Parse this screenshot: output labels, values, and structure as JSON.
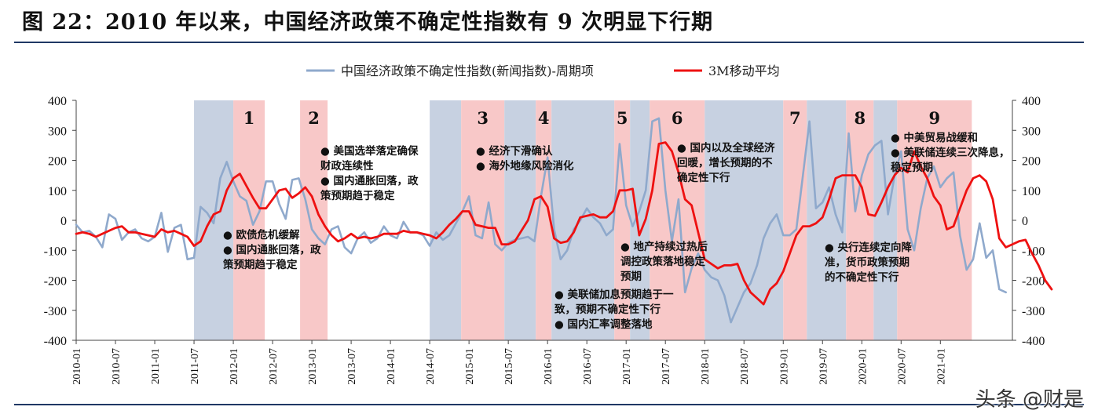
{
  "figure_title": "图 22：2010 年以来，中国经济政策不确定性指数有 9 次明显下行期",
  "watermark": "头条 @财是",
  "colors": {
    "index_line": "#8fa9cc",
    "ma_line": "#ee1111",
    "blue_band": "#c7d1e1",
    "pink_band": "#f8c8c8",
    "rule": "#1f3864"
  },
  "chart_data": {
    "type": "line",
    "title": "",
    "xlabel": "",
    "ylabel": "",
    "ylim": [
      -400,
      400
    ],
    "y_ticks": [
      -400,
      -300,
      -200,
      -100,
      0,
      100,
      200,
      300,
      400
    ],
    "x_tick_labels": [
      "2010-01",
      "2010-07",
      "2011-01",
      "2011-07",
      "2012-01",
      "2012-07",
      "2013-01",
      "2013-07",
      "2014-01",
      "2014-07",
      "2015-01",
      "2015-07",
      "2016-01",
      "2016-07",
      "2017-01",
      "2017-07",
      "2018-01",
      "2018-07",
      "2019-01",
      "2019-07",
      "2020-01",
      "2020-07",
      "2021-01"
    ],
    "legend_position": "top-center",
    "grid": false,
    "series": [
      {
        "name": "中国经济政策不确定性指数(新闻指数)-周期项",
        "values": [
          -15,
          -40,
          -35,
          -55,
          -90,
          20,
          5,
          -65,
          -40,
          -30,
          -60,
          -70,
          -55,
          25,
          -105,
          -25,
          -15,
          -130,
          -125,
          45,
          25,
          -10,
          140,
          195,
          130,
          80,
          65,
          -15,
          30,
          130,
          130,
          55,
          5,
          135,
          140,
          70,
          -30,
          -60,
          -80,
          -30,
          -20,
          -90,
          -110,
          -60,
          -40,
          -75,
          -60,
          -20,
          -50,
          -60,
          -5,
          -40,
          -40,
          -50,
          -85,
          -40,
          -65,
          -50,
          -10,
          30,
          80,
          -50,
          -60,
          60,
          -80,
          -100,
          -75,
          -65,
          -60,
          -55,
          -70,
          80,
          210,
          -30,
          -130,
          -100,
          -30,
          0,
          40,
          10,
          -10,
          -50,
          -30,
          255,
          50,
          -20,
          30,
          100,
          330,
          340,
          100,
          -70,
          70,
          -240,
          -160,
          -110,
          -165,
          -190,
          -200,
          -250,
          -340,
          -290,
          -240,
          -210,
          -150,
          -60,
          -10,
          20,
          -50,
          -50,
          -30,
          150,
          330,
          40,
          60,
          110,
          20,
          -40,
          290,
          30,
          150,
          220,
          250,
          265,
          20,
          150,
          230,
          -30,
          -100,
          40,
          140,
          180,
          110,
          140,
          160,
          -50,
          -165,
          -130,
          -10,
          -125,
          -100,
          -230,
          -240
        ],
        "color": "#8fa9cc"
      },
      {
        "name": "3M移动平均",
        "values": [
          -45,
          -40,
          -45,
          -55,
          -45,
          -35,
          -25,
          -20,
          -40,
          -40,
          -45,
          -50,
          -55,
          -30,
          -40,
          -35,
          -45,
          -55,
          -85,
          -70,
          -20,
          20,
          30,
          100,
          140,
          155,
          115,
          75,
          40,
          40,
          70,
          100,
          105,
          75,
          90,
          110,
          80,
          20,
          -20,
          -50,
          -70,
          -60,
          -45,
          -60,
          -55,
          -60,
          -55,
          -45,
          -45,
          -45,
          -35,
          -40,
          -40,
          -45,
          -50,
          -60,
          -40,
          -15,
          5,
          30,
          30,
          -15,
          -20,
          -25,
          -25,
          -80,
          -80,
          -70,
          -35,
          0,
          70,
          80,
          45,
          -60,
          -75,
          -70,
          -40,
          10,
          15,
          20,
          10,
          10,
          30,
          100,
          100,
          105,
          -50,
          5,
          100,
          255,
          260,
          230,
          160,
          70,
          50,
          -40,
          -130,
          -145,
          -160,
          -150,
          -150,
          -145,
          -200,
          -240,
          -260,
          -280,
          -230,
          -210,
          -170,
          -110,
          -50,
          -20,
          -20,
          -10,
          10,
          70,
          140,
          150,
          150,
          150,
          110,
          20,
          15,
          60,
          110,
          150,
          175,
          160,
          230,
          180,
          140,
          80,
          50,
          -30,
          -20,
          40,
          100,
          140,
          150,
          130,
          70,
          -60,
          -90,
          -80,
          -70,
          -65,
          -110,
          -150,
          -200,
          -230
        ],
        "color": "#ee1111"
      }
    ],
    "bands": [
      {
        "color": "blue",
        "start": 2011.5,
        "end": 2012.0
      },
      {
        "color": "pink",
        "start": 2012.0,
        "end": 2012.4,
        "label": "1"
      },
      {
        "color": "pink",
        "start": 2012.85,
        "end": 2013.2,
        "label": "2"
      },
      {
        "color": "blue",
        "start": 2014.5,
        "end": 2014.9
      },
      {
        "color": "pink",
        "start": 2014.9,
        "end": 2015.45,
        "label": "3"
      },
      {
        "color": "blue",
        "start": 2015.45,
        "end": 2015.85
      },
      {
        "color": "pink",
        "start": 2015.85,
        "end": 2016.05,
        "label": "4"
      },
      {
        "color": "blue",
        "start": 2016.05,
        "end": 2016.85
      },
      {
        "color": "pink",
        "start": 2016.85,
        "end": 2017.05,
        "label": "5"
      },
      {
        "color": "blue",
        "start": 2017.05,
        "end": 2017.3
      },
      {
        "color": "pink",
        "start": 2017.3,
        "end": 2018.0,
        "label": "6"
      },
      {
        "color": "blue",
        "start": 2018.0,
        "end": 2019.0
      },
      {
        "color": "pink",
        "start": 2019.0,
        "end": 2019.3,
        "label": "7"
      },
      {
        "color": "blue",
        "start": 2019.3,
        "end": 2019.8
      },
      {
        "color": "pink",
        "start": 2019.8,
        "end": 2020.15,
        "label": "8"
      },
      {
        "color": "blue",
        "start": 2020.15,
        "end": 2020.45
      },
      {
        "color": "pink",
        "start": 2020.45,
        "end": 2021.4,
        "label": "9"
      }
    ],
    "annotations": [
      {
        "id": "ann-2",
        "lines": [
          "● 美国选举落定确保",
          "财政连续性",
          "● 国内通胀回落，政",
          "策预期趋于稳定"
        ]
      },
      {
        "id": "ann-3",
        "lines": [
          "● 经济下滑确认",
          "● 海外地缘风险消化"
        ]
      },
      {
        "id": "ann-6",
        "lines": [
          "● 国内以及全球经济",
          "回暖，增长预期的不",
          "确定性下行"
        ]
      },
      {
        "id": "ann-8",
        "lines": [
          "● 中美贸易战缓和",
          "● 美联储连续三次降息，",
          "稳定预期"
        ]
      },
      {
        "id": "ann-1",
        "lines": [
          "● 欧债危机缓解",
          "● 国内通胀回落，政",
          "策预期趋于稳定"
        ]
      },
      {
        "id": "ann-5",
        "lines": [
          "● 地产持续过热后",
          "调控政策落地稳定",
          "预期"
        ]
      },
      {
        "id": "ann-7",
        "lines": [
          "● 央行连续定向降",
          "准，货币政策预期",
          "的不确定性下行"
        ]
      },
      {
        "id": "ann-4",
        "lines": [
          "● 美联储加息预期趋于一",
          "致，预期不确定性下行",
          "● 国内汇率调整落地"
        ]
      }
    ]
  }
}
